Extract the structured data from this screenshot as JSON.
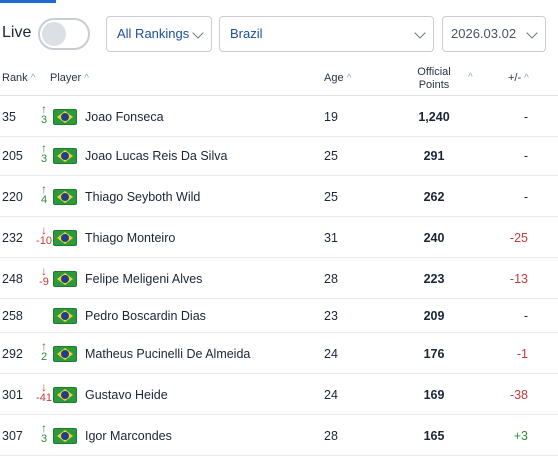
{
  "controls": {
    "live_label": "Live",
    "ranking_select": "All Rankings",
    "country_select": "Brazil",
    "date_select": "2026.03.02"
  },
  "columns": {
    "rank": "Rank",
    "player": "Player",
    "age": "Age",
    "points_line1": "Official",
    "points_line2": "Points",
    "diff": "+/-"
  },
  "icons": {
    "sort": "sort-ascending-arrow",
    "flag": "brazil-flag-icon",
    "move_up": "arrow-up-icon",
    "move_down": "arrow-down-icon"
  },
  "colors": {
    "accent": "#1f6bd6",
    "up": "#2f8a3b",
    "down": "#c23a3a"
  },
  "rows": [
    {
      "rank": "35",
      "dir": "up",
      "move": "3",
      "name": "Joao Fonseca",
      "age": "19",
      "points": "1,240",
      "diff": "-"
    },
    {
      "rank": "205",
      "dir": "up",
      "move": "3",
      "name": "Joao Lucas Reis Da Silva",
      "age": "25",
      "points": "291",
      "diff": "-"
    },
    {
      "rank": "220",
      "dir": "up",
      "move": "4",
      "name": "Thiago Seyboth Wild",
      "age": "25",
      "points": "262",
      "diff": "-"
    },
    {
      "rank": "232",
      "dir": "down",
      "move": "-10",
      "name": "Thiago Monteiro",
      "age": "31",
      "points": "240",
      "diff": "-25"
    },
    {
      "rank": "248",
      "dir": "down",
      "move": "-9",
      "name": "Felipe Meligeni Alves",
      "age": "28",
      "points": "223",
      "diff": "-13"
    },
    {
      "rank": "258",
      "dir": "none",
      "move": "",
      "name": "Pedro Boscardin Dias",
      "age": "23",
      "points": "209",
      "diff": "-"
    },
    {
      "rank": "292",
      "dir": "up",
      "move": "2",
      "name": "Matheus Pucinelli De Almeida",
      "age": "24",
      "points": "176",
      "diff": "-1"
    },
    {
      "rank": "301",
      "dir": "down",
      "move": "-41",
      "name": "Gustavo Heide",
      "age": "24",
      "points": "169",
      "diff": "-38"
    },
    {
      "rank": "307",
      "dir": "up",
      "move": "3",
      "name": "Igor Marcondes",
      "age": "28",
      "points": "165",
      "diff": "+3"
    }
  ]
}
